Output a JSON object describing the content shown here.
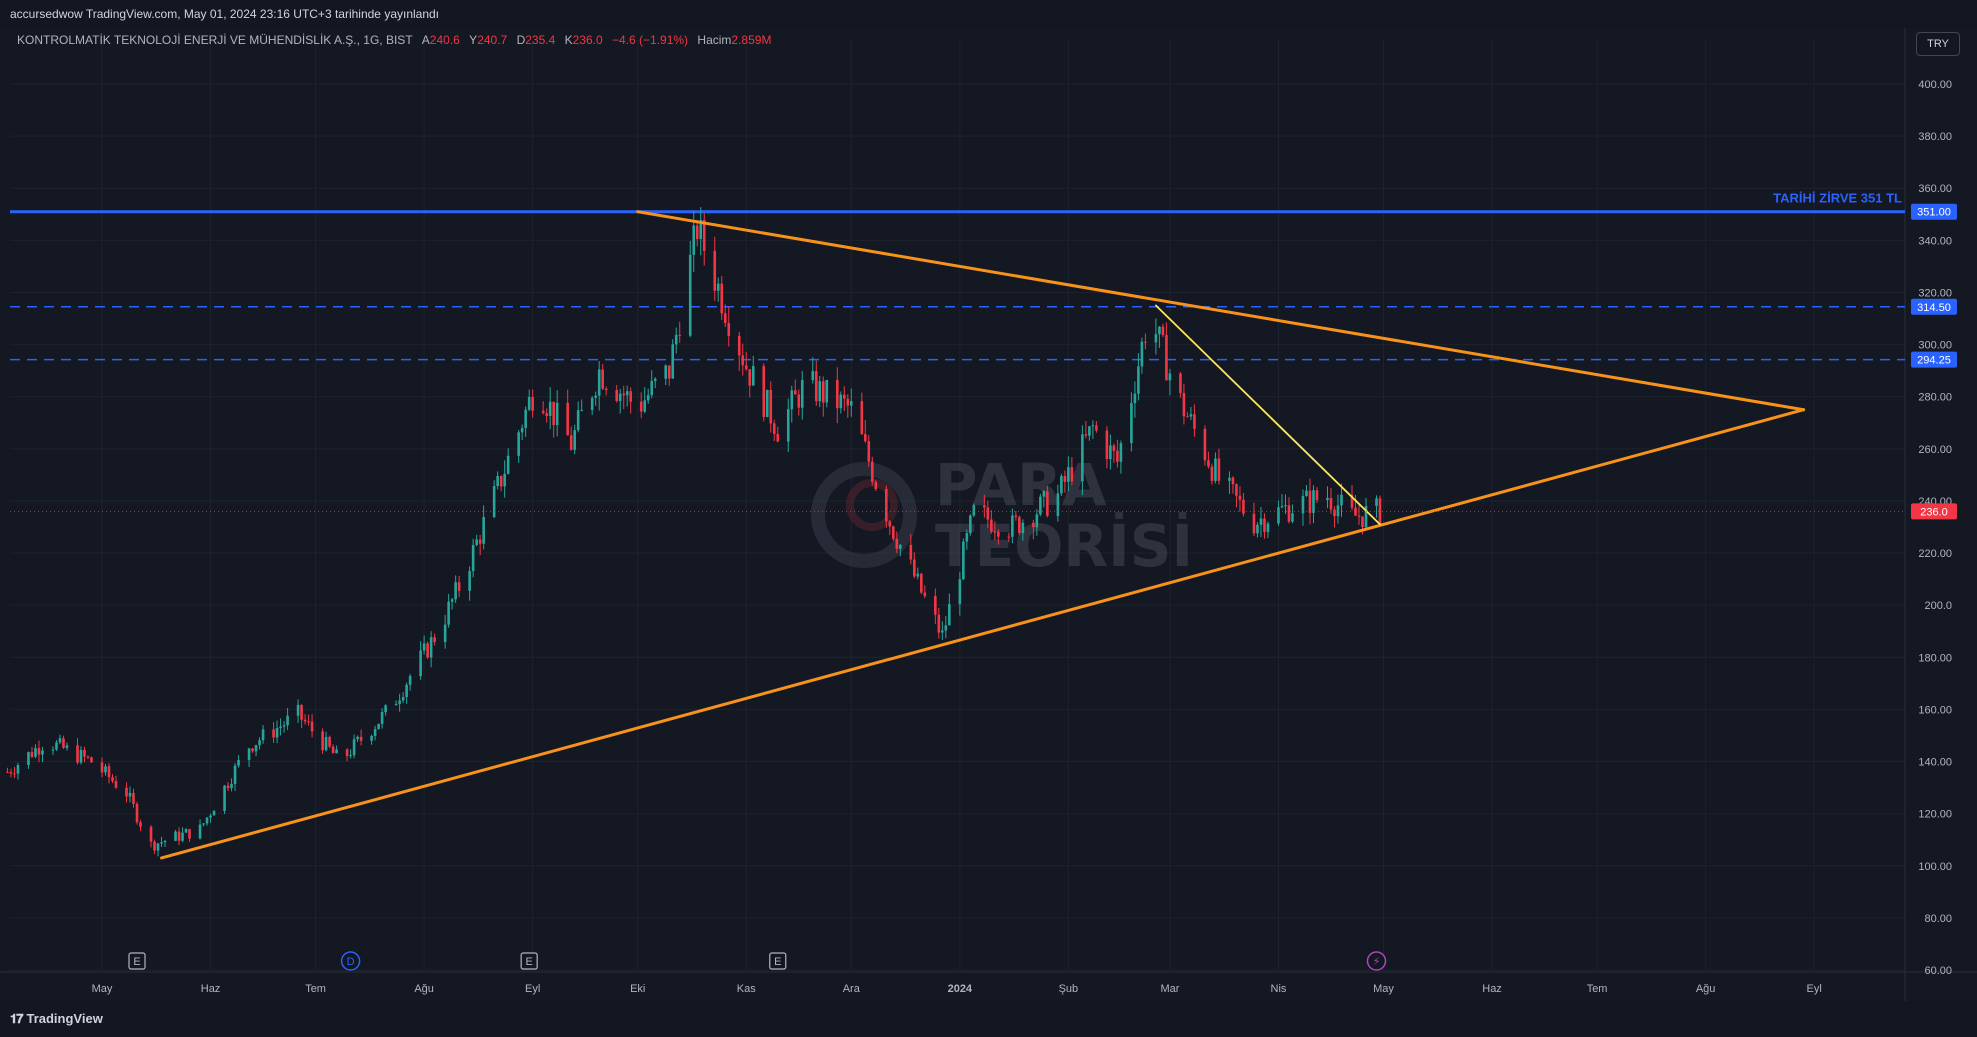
{
  "header": {
    "publish_text": "accursedwow TradingView.com, May 01, 2024 23:16 UTC+3 tarihinde yayınlandı"
  },
  "legend": {
    "symbol": "KONTROLMATİK TEKNOLOJİ ENERJİ VE MÜHENDİSLİK A.Ş., 1G, BIST",
    "open_label": "A",
    "open_value": "240.6",
    "high_label": "Y",
    "high_value": "240.7",
    "low_label": "D",
    "low_value": "235.4",
    "close_label": "K",
    "close_value": "236.0",
    "change": "−4.6 (−1.91%)",
    "volume_label": "Hacim",
    "volume_value": "2.859M"
  },
  "currency_button": "TRY",
  "footer": {
    "brand": "TradingView"
  },
  "watermark": {
    "line1": "PARA",
    "line2": "TEORİSİ"
  },
  "colors": {
    "background": "#131722",
    "up": "#26a69a",
    "down": "#f23645",
    "trend": "#f7931a",
    "resistance": "#2962ff",
    "inner_line": "#fbe65c"
  },
  "chart_data": {
    "type": "candlestick",
    "title": "",
    "ylim": [
      60,
      400
    ],
    "y_ticks": [
      "400.00",
      "380.00",
      "360.00",
      "340.00",
      "320.00",
      "300.00",
      "280.00",
      "260.00",
      "240.00",
      "220.00",
      "200.0",
      "180.00",
      "160.00",
      "140.00",
      "120.00",
      "100.00",
      "80.00",
      "60.00"
    ],
    "x_ticks": [
      "May",
      "Haz",
      "Tem",
      "Ağu",
      "Eyl",
      "Eki",
      "Kas",
      "Ara",
      "2024",
      "Şub",
      "Mar",
      "Nis",
      "May",
      "Haz",
      "Tem",
      "Ağu",
      "Eyl"
    ],
    "x_tick_dates": [
      "2023-05-01",
      "2023-06-01",
      "2023-07-01",
      "2023-08-01",
      "2023-09-01",
      "2023-10-01",
      "2023-11-01",
      "2023-12-01",
      "2024-01-01",
      "2024-02-01",
      "2024-03-01",
      "2024-04-01",
      "2024-05-01",
      "2024-06-01",
      "2024-07-01",
      "2024-08-01",
      "2024-09-01"
    ],
    "price_path": [
      [
        "2023-04-04",
        136
      ],
      [
        "2023-04-15",
        148
      ],
      [
        "2023-04-28",
        140
      ],
      [
        "2023-05-08",
        128
      ],
      [
        "2023-05-15",
        108
      ],
      [
        "2023-05-29",
        114
      ],
      [
        "2023-06-12",
        146
      ],
      [
        "2023-06-26",
        158
      ],
      [
        "2023-07-08",
        140
      ],
      [
        "2023-07-22",
        160
      ],
      [
        "2023-08-05",
        190
      ],
      [
        "2023-08-12",
        210
      ],
      [
        "2023-08-22",
        245
      ],
      [
        "2023-09-02",
        285
      ],
      [
        "2023-09-12",
        262
      ],
      [
        "2023-09-20",
        290
      ],
      [
        "2023-10-01",
        276
      ],
      [
        "2023-10-10",
        290
      ],
      [
        "2023-10-18",
        345
      ],
      [
        "2023-10-24",
        322
      ],
      [
        "2023-11-01",
        292
      ],
      [
        "2023-11-10",
        268
      ],
      [
        "2023-11-18",
        285
      ],
      [
        "2023-12-01",
        275
      ],
      [
        "2023-12-12",
        232
      ],
      [
        "2023-12-21",
        205
      ],
      [
        "2023-12-27",
        188
      ],
      [
        "2024-01-05",
        235
      ],
      [
        "2024-01-16",
        230
      ],
      [
        "2024-01-29",
        242
      ],
      [
        "2024-02-08",
        268
      ],
      [
        "2024-02-15",
        255
      ],
      [
        "2024-02-24",
        312
      ],
      [
        "2024-03-04",
        278
      ],
      [
        "2024-03-15",
        248
      ],
      [
        "2024-03-25",
        232
      ],
      [
        "2024-04-05",
        238
      ],
      [
        "2024-04-15",
        242
      ],
      [
        "2024-04-22",
        234
      ],
      [
        "2024-04-30",
        236
      ]
    ],
    "last_price": "236.0",
    "horizontal_levels": [
      {
        "value": 351,
        "label": "351.00",
        "style": "solid",
        "annotation": "TARİHİ ZİRVE 351 TL"
      },
      {
        "value": 314.5,
        "label": "314.50",
        "style": "dashed"
      },
      {
        "value": 294.25,
        "label": "294.25",
        "style": "dashed"
      }
    ],
    "trend_lines": [
      {
        "from": [
          "2023-05-18",
          103
        ],
        "to": [
          "2024-08-29",
          275
        ]
      },
      {
        "from": [
          "2023-10-01",
          351
        ],
        "to": [
          "2024-08-29",
          275
        ]
      },
      {
        "from": [
          "2024-02-26",
          315
        ],
        "to": [
          "2024-04-30",
          231
        ]
      }
    ],
    "event_markers": [
      {
        "date": "2023-05-11",
        "label": "E"
      },
      {
        "date": "2023-07-11",
        "label": "D"
      },
      {
        "date": "2023-08-31",
        "label": "E"
      },
      {
        "date": "2023-11-10",
        "label": "E"
      },
      {
        "date": "2024-04-29",
        "label": "⚡"
      }
    ]
  }
}
